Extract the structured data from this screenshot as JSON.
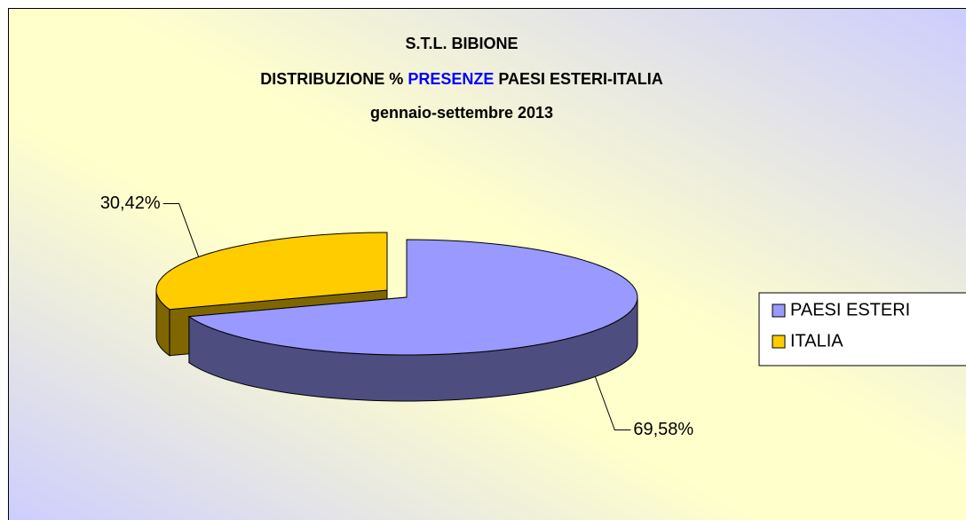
{
  "chart_data": {
    "type": "pie3d",
    "title": [
      "S.T.L. BIBIONE",
      "DISTRIBUZIONE %",
      "PRESENZE",
      "PAESI ESTERI-ITALIA",
      "gennaio-settembre 2013"
    ],
    "title_highlight_color": "#0000ff",
    "categories": [
      "PAESI ESTERI",
      "ITALIA"
    ],
    "values": [
      69.58,
      30.42
    ],
    "value_labels": [
      "69,58%",
      "30,42%"
    ],
    "colors": [
      "#9999ff",
      "#ffcc00"
    ],
    "legend": "right"
  }
}
